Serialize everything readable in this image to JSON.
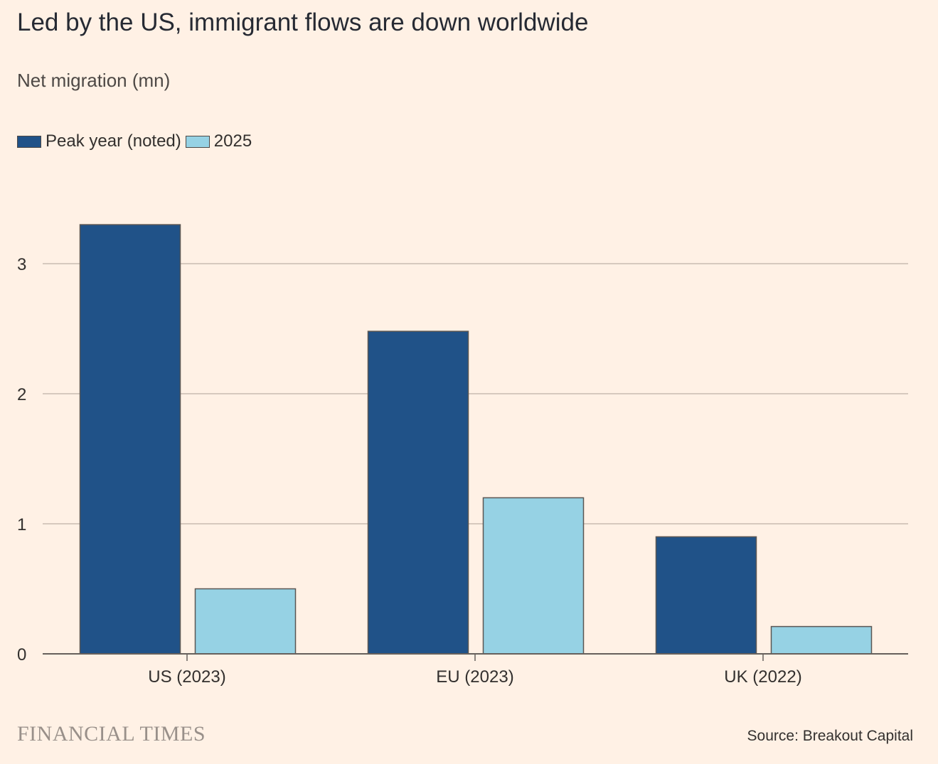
{
  "title": "Led by the US, immigrant flows are down worldwide",
  "subtitle": "Net migration (mn)",
  "legend": [
    {
      "label": "Peak year (noted)",
      "color": "#205288"
    },
    {
      "label": "2025",
      "color": "#96d2e4"
    }
  ],
  "footer": {
    "brand": "FINANCIAL TIMES",
    "source": "Source: Breakout Capital"
  },
  "chart_data": {
    "type": "bar",
    "title": "Led by the US, immigrant flows are down worldwide",
    "ylabel": "Net migration (mn)",
    "xlabel": "",
    "categories": [
      "US (2023)",
      "EU (2023)",
      "UK (2022)"
    ],
    "series": [
      {
        "name": "Peak year (noted)",
        "color": "#205288",
        "values": [
          3.3,
          2.48,
          0.9
        ]
      },
      {
        "name": "2025",
        "color": "#96d2e4",
        "values": [
          0.5,
          1.2,
          0.21
        ]
      }
    ],
    "yticks": [
      0,
      1,
      2,
      3
    ],
    "ylim": [
      0,
      3.3
    ],
    "grid": true,
    "legend_position": "top-left"
  }
}
